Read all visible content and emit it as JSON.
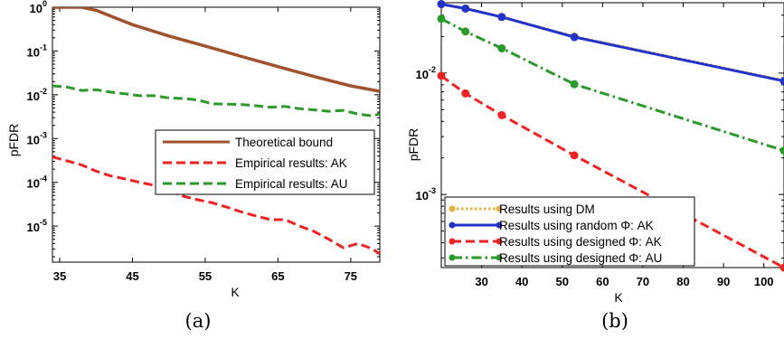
{
  "chart_data": [
    {
      "type": "line",
      "xlabel": "K",
      "ylabel": "pFDR",
      "caption": "(a)",
      "xlim": [
        34,
        79
      ],
      "ylim": [
        1.5e-06,
        1
      ],
      "yscale": "log",
      "xticks": [
        35,
        45,
        55,
        65,
        75
      ],
      "xtick_labels": [
        "35",
        "45",
        "55",
        "65",
        "75"
      ],
      "yticks": [
        1,
        0.1,
        0.01,
        0.001,
        0.0001,
        1e-05
      ],
      "ytick_bases": [
        "10",
        "10",
        "10",
        "10",
        "10",
        "10"
      ],
      "ytick_exps": [
        "0",
        "-1",
        "-2",
        "-3",
        "-4",
        "-5"
      ],
      "legend_position": "center-right",
      "series": [
        {
          "name": "Theoretical bound",
          "color": "#a0522d",
          "style": "solid",
          "x": [
            34,
            38,
            40,
            45,
            50,
            55,
            60,
            65,
            70,
            75,
            79
          ],
          "y": [
            1,
            1,
            0.85,
            0.4,
            0.22,
            0.13,
            0.075,
            0.044,
            0.026,
            0.016,
            0.012
          ]
        },
        {
          "name": "Empirical results: AK",
          "color": "#ee2222",
          "style": "dashed",
          "x": [
            34,
            36,
            38,
            40,
            42,
            44,
            46,
            48,
            50,
            52,
            54,
            56,
            58,
            60,
            62,
            64,
            66,
            68,
            70,
            72,
            74,
            76,
            78,
            79
          ],
          "y": [
            0.00038,
            0.00031,
            0.00025,
            0.00018,
            0.00014,
            0.00012,
            0.0001,
            8.5e-05,
            6.5e-05,
            4.8e-05,
            4e-05,
            3.4e-05,
            2.7e-05,
            2.1e-05,
            1.7e-05,
            1.4e-05,
            1.4e-05,
            1e-05,
            7.5e-06,
            5e-06,
            3.2e-06,
            4e-06,
            3e-06,
            2.3e-06
          ]
        },
        {
          "name": "Empirical results: AU",
          "color": "#2a9a2a",
          "style": "dashed",
          "x": [
            34,
            36,
            38,
            40,
            42,
            44,
            46,
            48,
            50,
            52,
            54,
            56,
            58,
            60,
            62,
            64,
            66,
            68,
            70,
            72,
            74,
            76,
            78,
            79
          ],
          "y": [
            0.016,
            0.015,
            0.0125,
            0.013,
            0.0115,
            0.0105,
            0.0095,
            0.0095,
            0.0085,
            0.0082,
            0.0076,
            0.0062,
            0.0061,
            0.006,
            0.0056,
            0.0052,
            0.0054,
            0.0048,
            0.0045,
            0.0042,
            0.0044,
            0.0036,
            0.0033,
            0.0037
          ]
        }
      ]
    },
    {
      "type": "line",
      "xlabel": "K",
      "ylabel": "pFDR",
      "caption": "(b)",
      "xlim": [
        20,
        105
      ],
      "ylim": [
        0.00025,
        0.038
      ],
      "yscale": "log",
      "xticks": [
        30,
        40,
        50,
        60,
        70,
        80,
        90,
        100
      ],
      "xtick_labels": [
        "30",
        "40",
        "50",
        "60",
        "70",
        "80",
        "90",
        "100"
      ],
      "yticks": [
        0.01,
        0.001
      ],
      "ytick_bases": [
        "10",
        "10"
      ],
      "ytick_exps": [
        "-2",
        "-3"
      ],
      "legend_position": "bottom-left",
      "series": [
        {
          "name": "Results using DM",
          "color": "#e8b040",
          "style": "dotted",
          "marker": "circle",
          "x": [
            20,
            26,
            35,
            53,
            105
          ],
          "y": [
            0.037,
            0.034,
            0.029,
            0.02,
            0.0087
          ]
        },
        {
          "name": "Results using random Φ: AK",
          "color": "#2233cc",
          "style": "solid",
          "marker": "circle",
          "x": [
            20,
            26,
            35,
            53,
            105
          ],
          "y": [
            0.037,
            0.034,
            0.029,
            0.0198,
            0.0086
          ]
        },
        {
          "name": "Results using designed Φ: AK",
          "color": "#ee2222",
          "style": "dashed",
          "marker": "circle",
          "x": [
            20,
            26,
            35,
            53,
            105
          ],
          "y": [
            0.0095,
            0.0068,
            0.0045,
            0.0021,
            0.00025
          ]
        },
        {
          "name": "Results using designed Φ: AU",
          "color": "#2a9a2a",
          "style": "dashdot",
          "marker": "circle",
          "x": [
            20,
            26,
            35,
            53,
            105
          ],
          "y": [
            0.028,
            0.022,
            0.016,
            0.0081,
            0.0023
          ]
        }
      ]
    }
  ]
}
